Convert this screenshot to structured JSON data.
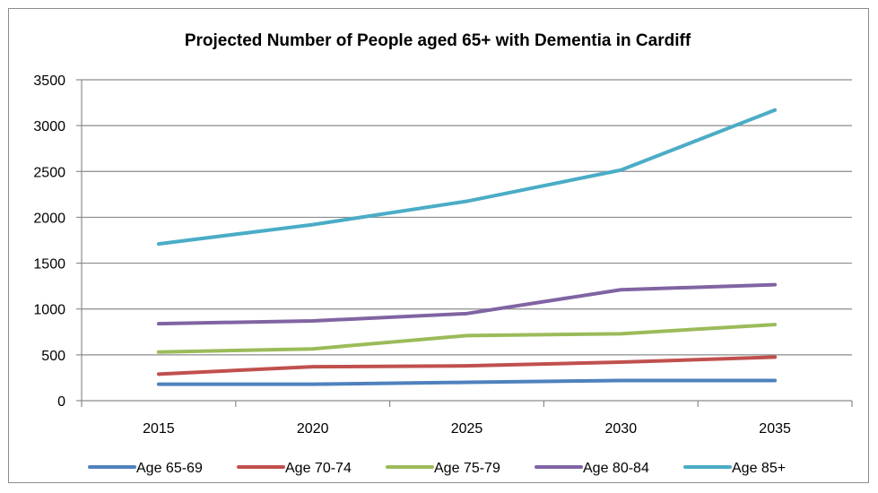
{
  "chart_data": {
    "type": "line",
    "title": "Projected Number of People aged 65+ with Dementia in Cardiff",
    "xlabel": "",
    "ylabel": "",
    "categories": [
      "2015",
      "2020",
      "2025",
      "2030",
      "2035"
    ],
    "ylim": [
      0,
      3500
    ],
    "yticks": [
      "0",
      "500",
      "1000",
      "1500",
      "2000",
      "2500",
      "3000",
      "3500"
    ],
    "grid": true,
    "legend_position": "bottom",
    "series": [
      {
        "name": "Age 65-69",
        "color": "#4F81BD",
        "values": [
          180,
          180,
          200,
          220,
          220
        ]
      },
      {
        "name": "Age 70-74",
        "color": "#C0504D",
        "values": [
          290,
          370,
          380,
          420,
          475
        ]
      },
      {
        "name": "Age 75-79",
        "color": "#9BBB59",
        "values": [
          530,
          565,
          710,
          730,
          830
        ]
      },
      {
        "name": "Age 80-84",
        "color": "#8064A2",
        "values": [
          840,
          870,
          950,
          1210,
          1265
        ]
      },
      {
        "name": "Age 85+",
        "color": "#4BACC6",
        "values": [
          1710,
          1920,
          2175,
          2515,
          3170
        ]
      }
    ]
  }
}
